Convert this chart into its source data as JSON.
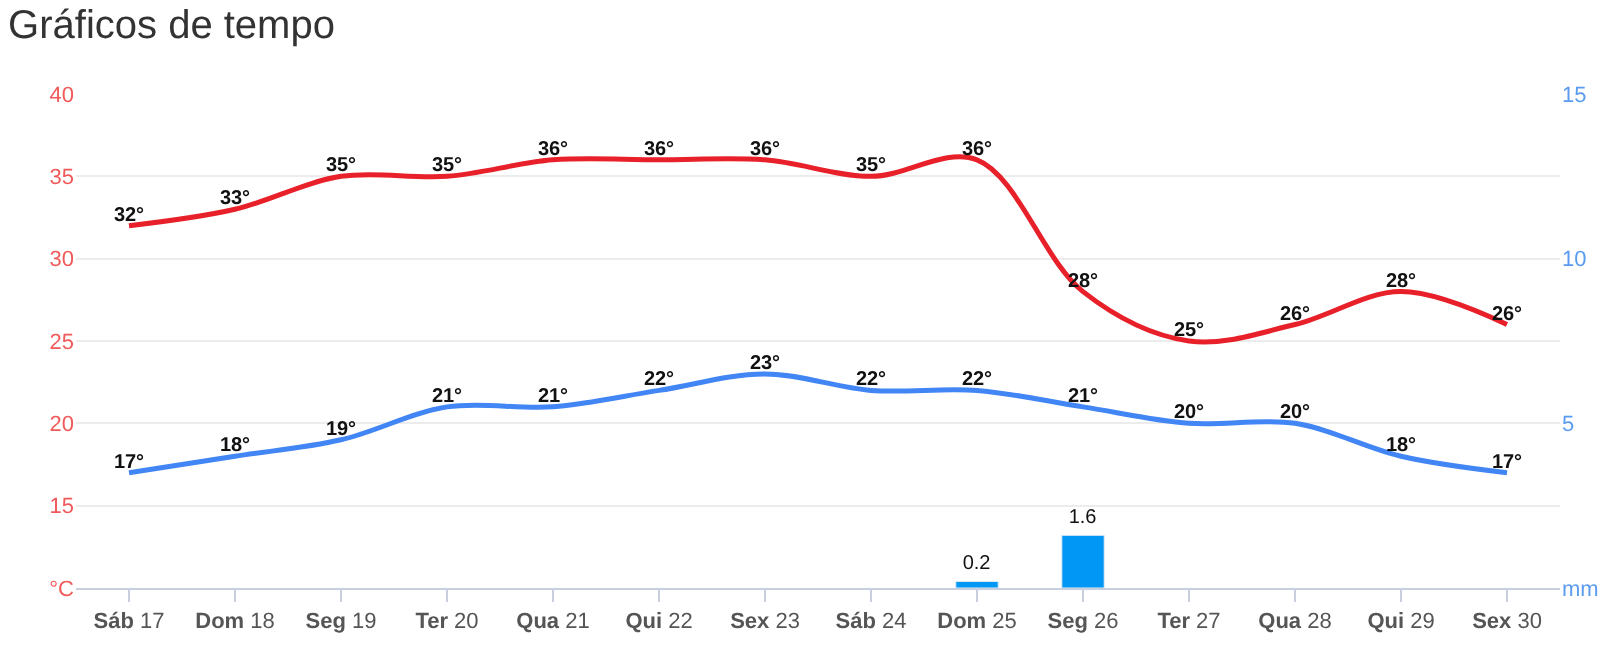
{
  "chart_data": {
    "type": "line",
    "title": "Gráficos de tempo",
    "categories": [
      "Sáb 17",
      "Dom 18",
      "Seg 19",
      "Ter 20",
      "Qua 21",
      "Qui 22",
      "Sex 23",
      "Sáb 24",
      "Dom 25",
      "Seg 26",
      "Ter 27",
      "Qua 28",
      "Qui 29",
      "Sex 30"
    ],
    "series": [
      {
        "color": "#e8202a",
        "values": [
          32,
          33,
          35,
          35,
          36,
          36,
          36,
          35,
          36,
          28,
          25,
          26,
          28,
          26
        ],
        "value_labels": [
          "32°",
          "33°",
          "35°",
          "35°",
          "36°",
          "36°",
          "36°",
          "35°",
          "36°",
          "28°",
          "25°",
          "26°",
          "28°",
          "26°"
        ]
      },
      {
        "color": "#4285f4",
        "values": [
          17,
          18,
          19,
          21,
          21,
          22,
          23,
          22,
          22,
          21,
          20,
          20,
          18,
          17
        ],
        "value_labels": [
          "17°",
          "18°",
          "19°",
          "21°",
          "21°",
          "22°",
          "23°",
          "22°",
          "22°",
          "21°",
          "20°",
          "20°",
          "18°",
          "17°"
        ]
      },
      {
        "type": "bar",
        "axis": "y2",
        "color": "#0097f5",
        "values": [
          null,
          null,
          null,
          null,
          null,
          null,
          null,
          null,
          0.2,
          1.6,
          null,
          null,
          null,
          null
        ],
        "value_labels": [
          null,
          null,
          null,
          null,
          null,
          null,
          null,
          null,
          "0.2",
          "1.6",
          null,
          null,
          null,
          null
        ]
      }
    ],
    "ylim": [
      10,
      40
    ],
    "yticks": [
      {
        "value": 10,
        "label": "°C"
      },
      15,
      20,
      25,
      30,
      35,
      40
    ],
    "y2lim": [
      0,
      15
    ],
    "y2ticks": [
      {
        "value": 0,
        "label": "mm"
      },
      5,
      10,
      15
    ],
    "grid": "y"
  }
}
